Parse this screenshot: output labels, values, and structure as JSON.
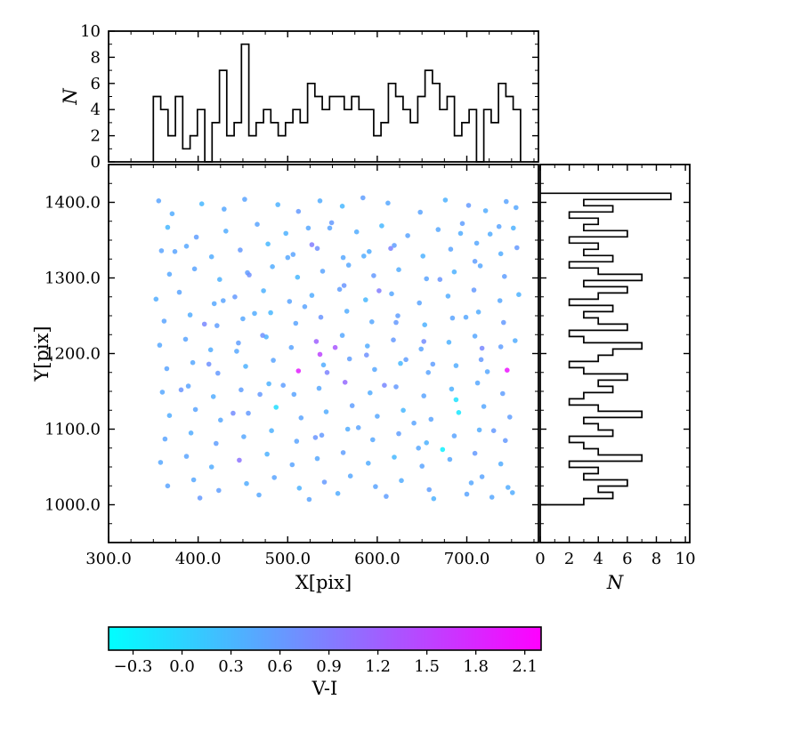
{
  "chart_data": {
    "type": "scatter",
    "frame_color": "#000000",
    "main": {
      "xlabel": "X[pix]",
      "ylabel": "Y[pix]",
      "xlim": [
        300,
        780
      ],
      "ylim": [
        950,
        1450
      ],
      "x_tick_labels": [
        "300.0",
        "400.0",
        "500.0",
        "600.0",
        "700.0"
      ],
      "x_tick_values": [
        300,
        400,
        500,
        600,
        700
      ],
      "y_tick_labels": [
        "1000.0",
        "1100.0",
        "1200.0",
        "1300.0",
        "1400.0"
      ],
      "y_tick_values": [
        1000,
        1100,
        1200,
        1300,
        1400
      ]
    },
    "scatter": {
      "x": [
        356,
        371,
        404,
        429,
        452,
        489,
        512,
        536,
        561,
        584,
        612,
        648,
        676,
        702,
        721,
        744,
        755,
        366,
        398,
        431,
        466,
        498,
        523,
        549,
        577,
        605,
        634,
        668,
        695,
        726,
        752,
        359,
        387,
        415,
        447,
        478,
        506,
        533,
        562,
        591,
        619,
        651,
        682,
        711,
        738,
        756,
        368,
        396,
        424,
        455,
        483,
        511,
        539,
        568,
        596,
        624,
        655,
        686,
        715,
        742,
        353,
        379,
        418,
        441,
        473,
        502,
        527,
        558,
        587,
        616,
        647,
        679,
        708,
        737,
        758,
        362,
        391,
        421,
        450,
        481,
        509,
        537,
        566,
        594,
        623,
        653,
        684,
        713,
        741,
        357,
        386,
        414,
        445,
        476,
        504,
        532,
        561,
        589,
        618,
        649,
        680,
        709,
        738,
        754,
        365,
        394,
        422,
        453,
        484,
        512,
        540,
        569,
        597,
        626,
        657,
        688,
        716,
        745,
        360,
        389,
        417,
        448,
        479,
        507,
        535,
        564,
        592,
        621,
        652,
        683,
        712,
        740,
        368,
        397,
        425,
        456,
        487,
        515,
        543,
        572,
        600,
        629,
        660,
        691,
        719,
        748,
        363,
        392,
        420,
        451,
        482,
        510,
        538,
        567,
        595,
        624,
        655,
        686,
        714,
        743,
        358,
        387,
        415,
        446,
        477,
        505,
        533,
        562,
        590,
        619,
        650,
        681,
        709,
        738,
        366,
        395,
        423,
        454,
        485,
        513,
        541,
        570,
        598,
        627,
        658,
        705,
        717,
        746,
        402,
        468,
        524,
        556,
        610,
        663,
        700,
        728,
        751,
        374,
        443,
        519,
        585,
        632,
        699,
        553,
        472,
        608,
        527,
        439,
        670,
        736,
        463,
        544,
        621,
        688,
        412,
        579,
        646,
        717,
        495,
        563,
        673,
        536,
        602,
        457,
        709,
        381,
        428,
        652,
        730,
        500,
        547,
        615,
        693,
        469,
        588,
        641,
        723,
        407,
        531,
        662
      ],
      "y": [
        1402,
        1385,
        1398,
        1391,
        1404,
        1397,
        1388,
        1402,
        1395,
        1406,
        1399,
        1387,
        1403,
        1396,
        1389,
        1401,
        1393,
        1367,
        1354,
        1362,
        1371,
        1359,
        1366,
        1373,
        1361,
        1369,
        1356,
        1364,
        1372,
        1358,
        1366,
        1336,
        1342,
        1328,
        1337,
        1345,
        1331,
        1339,
        1327,
        1335,
        1343,
        1329,
        1338,
        1346,
        1332,
        1340,
        1305,
        1312,
        1298,
        1307,
        1315,
        1301,
        1309,
        1317,
        1303,
        1311,
        1299,
        1308,
        1316,
        1302,
        1272,
        1281,
        1266,
        1275,
        1283,
        1269,
        1277,
        1285,
        1271,
        1279,
        1267,
        1276,
        1284,
        1270,
        1278,
        1243,
        1251,
        1237,
        1246,
        1254,
        1240,
        1248,
        1256,
        1242,
        1250,
        1238,
        1247,
        1255,
        1241,
        1211,
        1219,
        1205,
        1214,
        1222,
        1208,
        1216,
        1224,
        1210,
        1218,
        1206,
        1215,
        1223,
        1209,
        1217,
        1180,
        1188,
        1174,
        1183,
        1191,
        1177,
        1185,
        1193,
        1179,
        1187,
        1175,
        1184,
        1192,
        1178,
        1149,
        1157,
        1143,
        1152,
        1160,
        1146,
        1154,
        1162,
        1148,
        1156,
        1144,
        1153,
        1161,
        1147,
        1118,
        1126,
        1112,
        1121,
        1129,
        1115,
        1123,
        1131,
        1117,
        1125,
        1113,
        1122,
        1130,
        1116,
        1087,
        1095,
        1081,
        1090,
        1098,
        1084,
        1092,
        1100,
        1086,
        1094,
        1082,
        1091,
        1099,
        1085,
        1056,
        1064,
        1050,
        1059,
        1067,
        1053,
        1061,
        1069,
        1055,
        1063,
        1051,
        1060,
        1068,
        1054,
        1025,
        1033,
        1019,
        1028,
        1036,
        1022,
        1030,
        1038,
        1024,
        1032,
        1020,
        1029,
        1037,
        1023,
        1009,
        1013,
        1007,
        1015,
        1011,
        1008,
        1014,
        1010,
        1016,
        1335,
        1203,
        1262,
        1329,
        1192,
        1248,
        1208,
        1224,
        1158,
        1344,
        1121,
        1298,
        1368,
        1253,
        1175,
        1241,
        1139,
        1186,
        1102,
        1075,
        1207,
        1158,
        1290,
        1073,
        1199,
        1283,
        1304,
        1322,
        1152,
        1270,
        1216,
        1098,
        1327,
        1366,
        1339,
        1359,
        1146,
        1198,
        1108,
        1176,
        1239,
        1089,
        1186
      ],
      "v_i": [
        0.5,
        0.4,
        0.3,
        0.45,
        0.5,
        0.35,
        0.6,
        0.4,
        0.3,
        0.55,
        0.45,
        0.5,
        0.35,
        0.6,
        0.4,
        0.5,
        0.45,
        0.3,
        0.55,
        0.4,
        0.5,
        0.35,
        0.45,
        0.6,
        0.4,
        0.3,
        0.5,
        0.45,
        0.55,
        0.4,
        0.35,
        0.5,
        0.45,
        0.4,
        0.6,
        0.3,
        0.5,
        0.7,
        0.45,
        0.4,
        0.55,
        0.35,
        0.5,
        0.45,
        0.4,
        0.6,
        0.45,
        0.5,
        0.35,
        0.55,
        0.4,
        0.3,
        0.5,
        0.45,
        0.6,
        0.4,
        0.5,
        0.35,
        0.45,
        0.55,
        0.4,
        0.5,
        0.45,
        0.6,
        0.35,
        0.5,
        0.4,
        0.55,
        0.3,
        0.45,
        0.5,
        0.4,
        0.6,
        0.45,
        0.35,
        0.5,
        0.4,
        0.55,
        0.45,
        0.3,
        0.5,
        0.65,
        0.4,
        0.45,
        0.55,
        0.35,
        0.5,
        0.4,
        0.6,
        0.45,
        0.5,
        0.4,
        0.55,
        0.35,
        0.5,
        1.2,
        0.45,
        0.4,
        0.6,
        0.5,
        0.35,
        0.45,
        0.55,
        0.4,
        0.5,
        0.45,
        0.6,
        0.35,
        0.5,
        1.9,
        0.4,
        0.55,
        0.45,
        0.3,
        0.5,
        0.4,
        0.6,
        2.0,
        0.45,
        0.5,
        0.4,
        0.55,
        0.35,
        0.5,
        0.45,
        1.1,
        0.4,
        0.6,
        0.5,
        0.35,
        0.45,
        0.55,
        0.4,
        0.5,
        0.45,
        0.6,
        -0.1,
        0.5,
        0.4,
        0.55,
        0.45,
        0.3,
        0.5,
        -0.2,
        0.45,
        0.55,
        0.5,
        0.4,
        0.55,
        0.45,
        0.35,
        0.5,
        0.6,
        0.4,
        0.45,
        0.55,
        0.35,
        0.5,
        0.4,
        0.6,
        0.45,
        0.5,
        0.4,
        1.0,
        0.35,
        0.5,
        0.45,
        0.55,
        0.4,
        0.3,
        0.5,
        0.45,
        0.6,
        0.4,
        0.5,
        0.45,
        0.55,
        0.4,
        0.5,
        0.35,
        0.6,
        0.45,
        0.5,
        0.4,
        0.55,
        0.45,
        0.5,
        0.4,
        0.6,
        0.45,
        0.5,
        0.4,
        0.55,
        0.35,
        0.5,
        0.45,
        0.4,
        0.5,
        0.45,
        0.5,
        0.4,
        0.55,
        0.45,
        1.3,
        0.7,
        0.8,
        0.9,
        0.75,
        0.65,
        0.5,
        0.4,
        0.85,
        0.6,
        -0.15,
        0.7,
        0.5,
        0.45,
        0.8,
        0.55,
        0.65,
        -0.3,
        1.5,
        0.9,
        0.7,
        0.55,
        0.65,
        0.5,
        0.75,
        0.6,
        0.45,
        0.5,
        0.85,
        0.4,
        0.6,
        0.7,
        0.5,
        0.45,
        0.8,
        0.65,
        0.55
      ]
    },
    "top_hist": {
      "ylabel": "N",
      "ylim": [
        0,
        10
      ],
      "y_tick_labels": [
        "0",
        "2",
        "4",
        "6",
        "8",
        "10"
      ],
      "y_tick_values": [
        0,
        2,
        4,
        6,
        8,
        10
      ],
      "bin_start": 350,
      "bin_width": 8.2,
      "counts": [
        5,
        4,
        2,
        5,
        1,
        2,
        4,
        0,
        3,
        7,
        2,
        3,
        9,
        2,
        3,
        4,
        3,
        2,
        3,
        4,
        3,
        6,
        5,
        4,
        5,
        5,
        4,
        5,
        4,
        4,
        2,
        3,
        6,
        5,
        4,
        3,
        5,
        7,
        6,
        4,
        5,
        2,
        3,
        4,
        0,
        4,
        3,
        6,
        5,
        4
      ]
    },
    "right_hist": {
      "xlabel": "N",
      "xlim": [
        0,
        10.3
      ],
      "x_tick_labels": [
        "0",
        "2",
        "4",
        "6",
        "8",
        "10"
      ],
      "x_tick_values": [
        0,
        2,
        4,
        6,
        8,
        10
      ],
      "bin_start": 1000,
      "bin_width": 8.24,
      "counts": [
        3,
        5,
        4,
        6,
        3,
        4,
        2,
        7,
        4,
        3,
        2,
        5,
        4,
        3,
        7,
        4,
        2,
        3,
        5,
        4,
        6,
        3,
        2,
        4,
        5,
        7,
        3,
        2,
        6,
        4,
        3,
        5,
        2,
        4,
        6,
        3,
        7,
        4,
        2,
        5,
        3,
        4,
        2,
        6,
        3,
        4,
        2,
        5,
        3,
        9
      ]
    },
    "colorbar": {
      "label": "V-I",
      "cmap": "cool",
      "cmap_start": "#00ffff",
      "cmap_end": "#ff00ff",
      "vmin": -0.45,
      "vmax": 2.2,
      "tick_labels": [
        "−0.3",
        "0.0",
        "0.3",
        "0.6",
        "0.9",
        "1.2",
        "1.5",
        "1.8",
        "2.1"
      ],
      "tick_values": [
        -0.3,
        0.0,
        0.3,
        0.6,
        0.9,
        1.2,
        1.5,
        1.8,
        2.1
      ]
    }
  }
}
